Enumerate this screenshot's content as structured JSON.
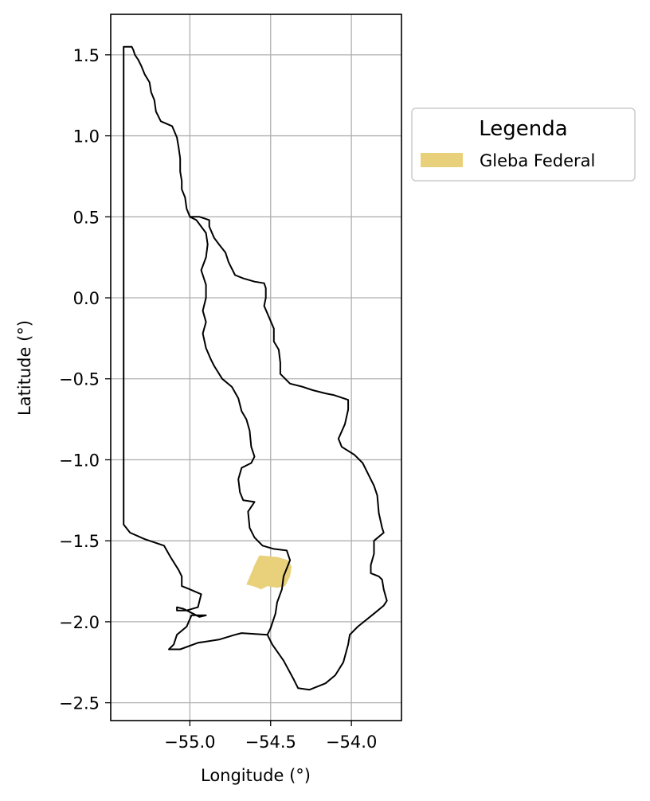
{
  "chart_data": {
    "type": "map",
    "xlabel": "Longitude (°)",
    "ylabel": "Latitude (°)",
    "xlim": [
      -55.49,
      -53.69
    ],
    "ylim": [
      -2.61,
      1.75
    ],
    "grid": true,
    "xticks": [
      -55.0,
      -54.5,
      -54.0
    ],
    "xtick_labels": [
      "−55.0",
      "−54.5",
      "−54.0"
    ],
    "yticks": [
      1.5,
      1.0,
      0.5,
      0.0,
      -0.5,
      -1.0,
      -1.5,
      -2.0,
      -2.5
    ],
    "ytick_labels": [
      "1.5",
      "1.0",
      "0.5",
      "0.0",
      "−0.5",
      "−1.0",
      "−1.5",
      "−2.0",
      "−2.5"
    ],
    "legend": {
      "title": "Legenda",
      "placement": "outside-right-top",
      "entries": [
        {
          "label": "Gleba Federal",
          "color": "#e8d17a"
        }
      ]
    },
    "boundary_color": "#000000",
    "boundary": [
      [
        -55.41,
        1.55
      ],
      [
        -55.36,
        1.55
      ],
      [
        -55.35,
        1.53
      ],
      [
        -55.34,
        1.5
      ],
      [
        -55.32,
        1.47
      ],
      [
        -55.3,
        1.43
      ],
      [
        -55.28,
        1.38
      ],
      [
        -55.25,
        1.33
      ],
      [
        -55.24,
        1.27
      ],
      [
        -55.22,
        1.22
      ],
      [
        -55.21,
        1.15
      ],
      [
        -55.18,
        1.09
      ],
      [
        -55.11,
        1.06
      ],
      [
        -55.08,
        0.99
      ],
      [
        -55.07,
        0.93
      ],
      [
        -55.06,
        0.86
      ],
      [
        -55.06,
        0.78
      ],
      [
        -55.05,
        0.72
      ],
      [
        -55.05,
        0.67
      ],
      [
        -55.03,
        0.62
      ],
      [
        -55.02,
        0.55
      ],
      [
        -55.0,
        0.5
      ],
      [
        -54.94,
        0.5
      ],
      [
        -54.88,
        0.48
      ],
      [
        -54.88,
        0.44
      ],
      [
        -54.85,
        0.37
      ],
      [
        -54.82,
        0.33
      ],
      [
        -54.78,
        0.28
      ],
      [
        -54.76,
        0.22
      ],
      [
        -54.72,
        0.14
      ],
      [
        -54.67,
        0.12
      ],
      [
        -54.6,
        0.1
      ],
      [
        -54.54,
        0.09
      ],
      [
        -54.53,
        0.06
      ],
      [
        -54.53,
        0.0
      ],
      [
        -54.54,
        -0.05
      ],
      [
        -54.51,
        -0.12
      ],
      [
        -54.48,
        -0.19
      ],
      [
        -54.48,
        -0.27
      ],
      [
        -54.45,
        -0.32
      ],
      [
        -54.44,
        -0.4
      ],
      [
        -54.44,
        -0.47
      ],
      [
        -54.38,
        -0.53
      ],
      [
        -54.3,
        -0.55
      ],
      [
        -54.24,
        -0.57
      ],
      [
        -54.16,
        -0.59
      ],
      [
        -54.11,
        -0.6
      ],
      [
        -54.02,
        -0.63
      ],
      [
        -54.02,
        -0.69
      ],
      [
        -54.04,
        -0.78
      ],
      [
        -54.08,
        -0.87
      ],
      [
        -54.06,
        -0.92
      ],
      [
        -53.98,
        -0.97
      ],
      [
        -53.93,
        -1.02
      ],
      [
        -53.89,
        -1.1
      ],
      [
        -53.86,
        -1.16
      ],
      [
        -53.84,
        -1.22
      ],
      [
        -53.83,
        -1.33
      ],
      [
        -53.81,
        -1.42
      ],
      [
        -53.8,
        -1.45
      ],
      [
        -53.86,
        -1.5
      ],
      [
        -53.86,
        -1.58
      ],
      [
        -53.88,
        -1.65
      ],
      [
        -53.88,
        -1.7
      ],
      [
        -53.83,
        -1.72
      ],
      [
        -53.81,
        -1.74
      ],
      [
        -53.8,
        -1.8
      ],
      [
        -53.78,
        -1.87
      ],
      [
        -53.8,
        -1.9
      ],
      [
        -53.86,
        -1.95
      ],
      [
        -53.96,
        -2.03
      ],
      [
        -54.01,
        -2.08
      ],
      [
        -54.02,
        -2.14
      ],
      [
        -54.05,
        -2.25
      ],
      [
        -54.1,
        -2.33
      ],
      [
        -54.16,
        -2.38
      ],
      [
        -54.26,
        -2.42
      ],
      [
        -54.33,
        -2.41
      ],
      [
        -54.36,
        -2.35
      ],
      [
        -54.42,
        -2.24
      ],
      [
        -54.49,
        -2.14
      ],
      [
        -54.52,
        -2.08
      ],
      [
        -54.68,
        -2.07
      ],
      [
        -54.72,
        -2.08
      ],
      [
        -54.82,
        -2.11
      ],
      [
        -54.95,
        -2.13
      ],
      [
        -55.06,
        -2.17
      ],
      [
        -55.13,
        -2.17
      ],
      [
        -55.1,
        -2.14
      ],
      [
        -55.08,
        -2.08
      ],
      [
        -55.02,
        -2.03
      ],
      [
        -54.99,
        -1.96
      ],
      [
        -54.9,
        -1.96
      ],
      [
        -54.94,
        -1.97
      ],
      [
        -55.0,
        -1.94
      ],
      [
        -55.04,
        -1.92
      ],
      [
        -55.08,
        -1.91
      ],
      [
        -55.08,
        -1.93
      ],
      [
        -55.02,
        -1.93
      ],
      [
        -54.95,
        -1.91
      ],
      [
        -54.94,
        -1.87
      ],
      [
        -54.93,
        -1.83
      ],
      [
        -55.0,
        -1.8
      ],
      [
        -55.05,
        -1.78
      ],
      [
        -55.05,
        -1.72
      ],
      [
        -55.07,
        -1.68
      ],
      [
        -55.12,
        -1.6
      ],
      [
        -55.16,
        -1.53
      ],
      [
        -55.28,
        -1.49
      ],
      [
        -55.37,
        -1.45
      ],
      [
        -55.41,
        -1.4
      ],
      [
        -55.41,
        1.55
      ]
    ],
    "river": [
      [
        -55.0,
        0.5
      ],
      [
        -54.96,
        0.48
      ],
      [
        -54.9,
        0.4
      ],
      [
        -54.89,
        0.33
      ],
      [
        -54.9,
        0.25
      ],
      [
        -54.93,
        0.17
      ],
      [
        -54.9,
        0.08
      ],
      [
        -54.9,
        0.0
      ],
      [
        -54.92,
        -0.08
      ],
      [
        -54.9,
        -0.15
      ],
      [
        -54.92,
        -0.22
      ],
      [
        -54.9,
        -0.31
      ],
      [
        -54.87,
        -0.38
      ],
      [
        -54.85,
        -0.42
      ],
      [
        -54.8,
        -0.5
      ],
      [
        -54.74,
        -0.55
      ],
      [
        -54.7,
        -0.62
      ],
      [
        -54.68,
        -0.7
      ],
      [
        -54.65,
        -0.75
      ],
      [
        -54.63,
        -0.82
      ],
      [
        -54.62,
        -0.92
      ],
      [
        -54.6,
        -0.98
      ],
      [
        -54.62,
        -1.02
      ],
      [
        -54.68,
        -1.05
      ],
      [
        -54.7,
        -1.12
      ],
      [
        -54.69,
        -1.2
      ],
      [
        -54.67,
        -1.25
      ],
      [
        -54.6,
        -1.26
      ],
      [
        -54.64,
        -1.32
      ],
      [
        -54.63,
        -1.42
      ],
      [
        -54.6,
        -1.48
      ],
      [
        -54.55,
        -1.53
      ],
      [
        -54.48,
        -1.55
      ],
      [
        -54.4,
        -1.56
      ],
      [
        -54.38,
        -1.62
      ],
      [
        -54.42,
        -1.72
      ],
      [
        -54.43,
        -1.8
      ],
      [
        -54.46,
        -1.88
      ],
      [
        -54.47,
        -1.95
      ],
      [
        -54.5,
        -2.04
      ],
      [
        -54.52,
        -2.08
      ]
    ],
    "regions": [
      {
        "label": "Gleba Federal",
        "coords": [
          [
            -54.57,
            -1.59
          ],
          [
            -54.46,
            -1.6
          ],
          [
            -54.39,
            -1.62
          ],
          [
            -54.37,
            -1.66
          ],
          [
            -54.38,
            -1.72
          ],
          [
            -54.41,
            -1.78
          ],
          [
            -54.46,
            -1.79
          ],
          [
            -54.52,
            -1.78
          ],
          [
            -54.56,
            -1.8
          ],
          [
            -54.58,
            -1.79
          ],
          [
            -54.61,
            -1.78
          ],
          [
            -54.65,
            -1.77
          ],
          [
            -54.62,
            -1.7
          ],
          [
            -54.6,
            -1.65
          ],
          [
            -54.57,
            -1.59
          ]
        ]
      }
    ]
  }
}
